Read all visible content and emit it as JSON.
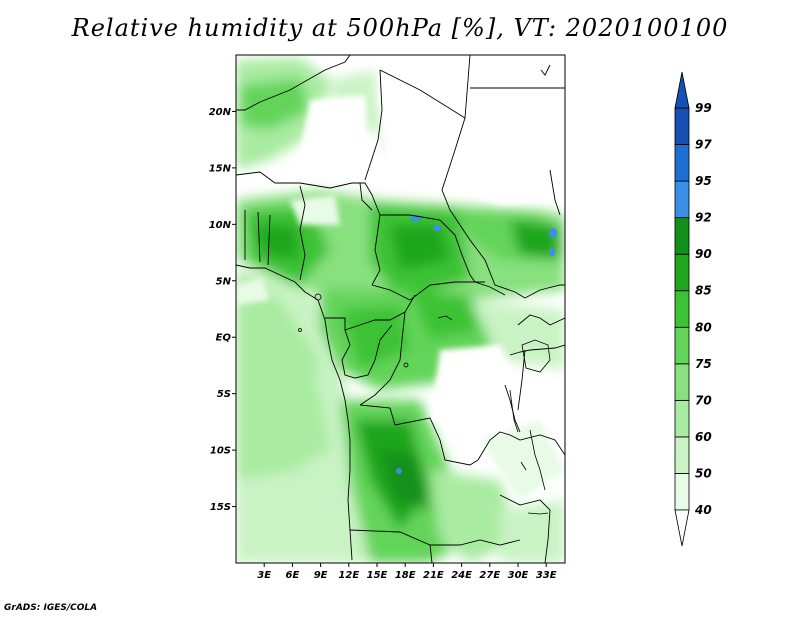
{
  "title": "Relative humidity at 500hPa [%], VT: 2020100100",
  "credit": "GrADS: IGES/COLA",
  "map": {
    "lon_range": [
      0,
      35
    ],
    "lat_range": [
      -20,
      25
    ],
    "lat_ticks": [
      {
        "value": 20,
        "label": "20N"
      },
      {
        "value": 15,
        "label": "15N"
      },
      {
        "value": 10,
        "label": "10N"
      },
      {
        "value": 5,
        "label": "5N"
      },
      {
        "value": 0,
        "label": "EQ"
      },
      {
        "value": -5,
        "label": "5S"
      },
      {
        "value": -10,
        "label": "10S"
      },
      {
        "value": -15,
        "label": "15S"
      }
    ],
    "lon_ticks": [
      {
        "value": 3,
        "label": "3E"
      },
      {
        "value": 6,
        "label": "6E"
      },
      {
        "value": 9,
        "label": "9E"
      },
      {
        "value": 12,
        "label": "12E"
      },
      {
        "value": 15,
        "label": "15E"
      },
      {
        "value": 18,
        "label": "18E"
      },
      {
        "value": 21,
        "label": "21E"
      },
      {
        "value": 24,
        "label": "24E"
      },
      {
        "value": 27,
        "label": "27E"
      },
      {
        "value": 30,
        "label": "30E"
      },
      {
        "value": 33,
        "label": "33E"
      }
    ]
  },
  "colorbar": {
    "levels": [
      {
        "label": "40",
        "color": "#ffffff"
      },
      {
        "label": "50",
        "color": "#e8fbe6"
      },
      {
        "label": "60",
        "color": "#c9f3c4"
      },
      {
        "label": "70",
        "color": "#a9eba1"
      },
      {
        "label": "75",
        "color": "#88e07f"
      },
      {
        "label": "80",
        "color": "#64d45a"
      },
      {
        "label": "85",
        "color": "#3cc236"
      },
      {
        "label": "90",
        "color": "#1fa61d"
      },
      {
        "label": "92",
        "color": "#12901a"
      },
      {
        "label": "95",
        "color": "#3b90e6"
      },
      {
        "label": "97",
        "color": "#1f6fd2"
      },
      {
        "label": "99",
        "color": "#1650b4"
      }
    ],
    "top_color": "#1650b4",
    "bottom_color": "#ffffff"
  }
}
